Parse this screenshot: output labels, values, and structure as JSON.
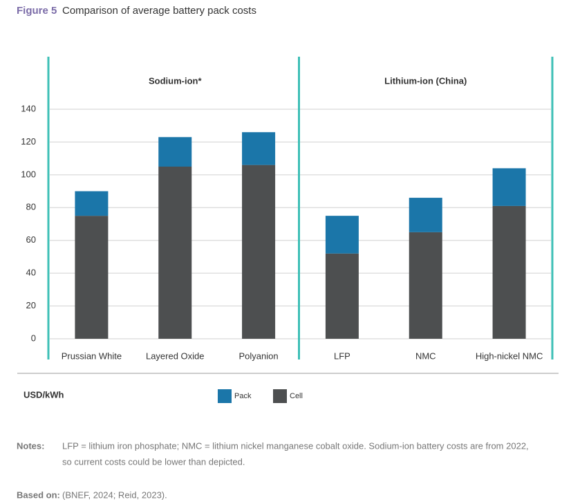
{
  "chart_data": {
    "type": "bar",
    "stacked": true,
    "figure_label": "Figure 5",
    "title": "Comparison of average battery pack costs",
    "y_label": "USD/kWh",
    "groups": [
      {
        "name": "Sodium-ion*",
        "categories": [
          "Prussian White",
          "Layered Oxide",
          "Polyanion"
        ]
      },
      {
        "name": "Lithium-ion (China)",
        "categories": [
          "LFP",
          "NMC",
          "High-nickel NMC"
        ]
      }
    ],
    "series": [
      {
        "name": "Pack",
        "color": "#1b76a9",
        "values": [
          15,
          18,
          20,
          23,
          21,
          23
        ]
      },
      {
        "name": "Cell",
        "color": "#4d4f50",
        "values": [
          75,
          105,
          106,
          52,
          65,
          81
        ]
      }
    ],
    "ylim": [
      0,
      140
    ],
    "yticks": [
      0,
      20,
      40,
      60,
      80,
      100,
      120,
      140
    ],
    "grid": true,
    "notes": {
      "label": "Notes:",
      "lines": [
        "LFP = lithium iron phosphate; NMC = lithium nickel manganese cobalt oxide. Sodium-ion battery costs are from 2022,",
        "so current costs could be lower than depicted."
      ]
    },
    "source": {
      "label": "Based on:",
      "text": "(BNEF, 2024; Reid, 2023)."
    }
  }
}
